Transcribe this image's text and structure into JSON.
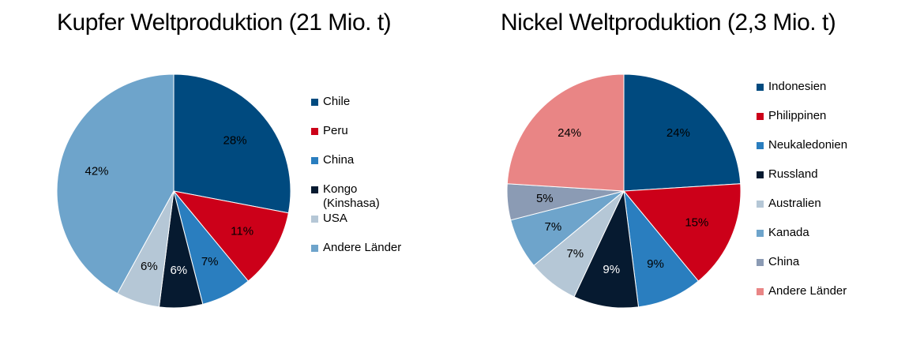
{
  "chart_data": [
    {
      "type": "pie",
      "title": "Kupfer Weltproduktion (21 Mio. t)",
      "categories": [
        "Chile",
        "Peru",
        "China",
        "Kongo (Kinshasa)",
        "USA",
        "Andere Länder"
      ],
      "values": [
        28,
        11,
        7,
        6,
        6,
        42
      ],
      "data_labels": [
        "28%",
        "11%",
        "7%",
        "6%",
        "6%",
        "42%"
      ],
      "colors": [
        "#004a7f",
        "#cc0019",
        "#2a7ebf",
        "#061a30",
        "#b5c7d6",
        "#6ea4cb"
      ],
      "label_colors": [
        "#000000",
        "#000000",
        "#000000",
        "#ffffff",
        "#000000",
        "#000000"
      ],
      "start_angle_deg": 0,
      "direction": "clockwise",
      "legend_position": "right"
    },
    {
      "type": "pie",
      "title": "Nickel Weltproduktion (2,3 Mio. t)",
      "categories": [
        "Indonesien",
        "Philippinen",
        "Neukaledonien",
        "Russland",
        "Australien",
        "Kanada",
        "China",
        "Andere Länder"
      ],
      "values": [
        24,
        15,
        9,
        9,
        7,
        7,
        5,
        24
      ],
      "data_labels": [
        "24%",
        "15%",
        "9%",
        "9%",
        "7%",
        "7%",
        "5%",
        "24%"
      ],
      "colors": [
        "#004a7f",
        "#cc0019",
        "#2a7ebf",
        "#061a30",
        "#b5c7d6",
        "#6ea4cb",
        "#8b9bb4",
        "#e98585"
      ],
      "label_colors": [
        "#000000",
        "#000000",
        "#000000",
        "#ffffff",
        "#000000",
        "#000000",
        "#000000",
        "#000000"
      ],
      "start_angle_deg": 0,
      "direction": "clockwise",
      "legend_position": "right"
    }
  ]
}
